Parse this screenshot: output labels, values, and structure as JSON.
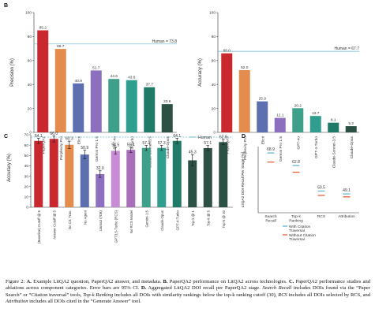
{
  "chart_data": [
    {
      "panel": "B",
      "type": "bar",
      "ylabel": "Precision (%)",
      "ylim": [
        0,
        100
      ],
      "yticks": [
        0,
        20,
        40,
        60,
        80,
        100
      ],
      "categories": [
        "PaperQA2",
        "Perplexity Pro",
        "Elicit",
        "Gemini Pro 1.5",
        "GPT-4o",
        "GPT-4-Turbo",
        "Claude-Sonnet-3.5",
        "Claude-Opus"
      ],
      "values": [
        85.2,
        69.7,
        40.9,
        51.7,
        44.6,
        43.6,
        37.7,
        23.6
      ],
      "value_labels": [
        "85.2",
        "69.7",
        "40.9",
        "51.7",
        "44.6",
        "43.6",
        "37.7",
        "23.6"
      ],
      "colors": [
        "#c8282e",
        "#e38c4d",
        "#5d6fb1",
        "#8d6fbf",
        "#3ea089",
        "#2f9e8f",
        "#1f7a68",
        "#2c5144"
      ],
      "reference_line": {
        "label": "Human = 73.8",
        "value": 73.8,
        "color": "#63b7d6"
      }
    },
    {
      "panel": "",
      "type": "bar",
      "ylabel": "Accuracy (%)",
      "ylim": [
        0,
        100
      ],
      "yticks": [
        0,
        20,
        40,
        60,
        80,
        100
      ],
      "categories": [
        "PaperQA2",
        "Perplexity Pro",
        "Elicit",
        "Gemini Pro 1.5",
        "GPT-4o",
        "GPT-4-Turbo",
        "Claude-Sonnet-3.5",
        "Claude-Opus"
      ],
      "values": [
        66.0,
        52.0,
        25.9,
        12.1,
        20.2,
        13.7,
        8.1,
        5.2
      ],
      "value_labels": [
        "66.0",
        "52.0",
        "25.9",
        "12.1",
        "20.2",
        "13.7",
        "8.1",
        "5.2"
      ],
      "colors": [
        "#c8282e",
        "#e38c4d",
        "#5d6fb1",
        "#8d6fbf",
        "#3ea089",
        "#2f9e8f",
        "#1f7a68",
        "#2c5144"
      ],
      "reference_line": {
        "label": "Human = 67.7",
        "value": 67.7,
        "color": "#63b7d6"
      }
    },
    {
      "panel": "C",
      "type": "bar",
      "ylabel": "Accuracy (%)",
      "ylim": [
        0,
        70
      ],
      "yticks": [
        0,
        10,
        20,
        30,
        40,
        50,
        60,
        70
      ],
      "categories": [
        "(Baseline) Cutoff @ 5",
        "Answer Cutoff @ 5",
        "No Cit. Trav.",
        "No Agent",
        "Llama3 (70B)",
        "GPT3.5-Turbo (RCS)",
        "No RCS Model",
        "Gemini-1.5",
        "Claude-Opus",
        "GPT-4-Turbo",
        "Top-k @ 1",
        "Top-k @ 5",
        "Top-k @ 10"
      ],
      "values": [
        64.1,
        66.0,
        60.3,
        50.9,
        32.0,
        54.5,
        55.4,
        57.3,
        57.3,
        64.1,
        45.3,
        57.1,
        62.9
      ],
      "value_labels": [
        "64.1",
        "66.0",
        "60.3",
        "50.9",
        "32.0",
        "54.5",
        "55.4",
        "57.3",
        "57.3",
        "64.1",
        "45.3",
        "57.1",
        "62.9"
      ],
      "errors": [
        2.5,
        3.0,
        3.5,
        4.2,
        3.2,
        3.2,
        2.5,
        2.5,
        2.5,
        2.5,
        5.5,
        2.5,
        2.5
      ],
      "colors": [
        "#c8282e",
        "#c8282e",
        "#e38c4d",
        "#5d6fb1",
        "#8d6fbf",
        "#c88bd6",
        "#a86fbb",
        "#3ea089",
        "#2f9e8f",
        "#1f7a68",
        "#2c5144",
        "#2c5144",
        "#2c5144"
      ],
      "legend": [
        {
          "label": "Human",
          "color": "#63b7d6"
        }
      ],
      "reference_line": {
        "value": 67.7,
        "color": "#63b7d6"
      }
    },
    {
      "panel": "D",
      "type": "scatter",
      "ylabel": "LitQA2 DOI Recall Per Stage (%)",
      "categories": [
        "Search Recall",
        "Top-k Ranking",
        "RCS",
        "Attribution"
      ],
      "series": [
        {
          "name": "With Citation Traversal",
          "color": "#63b7d6",
          "values": [
            68.9,
            62.8,
            50.5,
            49.1
          ]
        },
        {
          "name": "Without Citation Traversal",
          "color": "#e2603d",
          "values": [
            64.5,
            59.6,
            48.4,
            47.7
          ]
        }
      ],
      "value_labels": [
        "68.9",
        "62.8",
        "50.5",
        "49.1"
      ],
      "ylim": [
        40,
        72
      ]
    }
  ],
  "caption": {
    "figure_label": "Figure 2: ",
    "a_label": "A.",
    "a_text": " Example LitQA2 question, PaperQA2 answer, and metadata. ",
    "b_label": "B.",
    "b_text": " PaperQA2 performance on LitQA2 across technologies. ",
    "c_label": "C.",
    "c_text": " PaperQA2 performance studies and ablations across component categories. Error bars are 95% CI. ",
    "d_label": "D.",
    "d_text": " Aggregated LitQA2 DOI recall per PaperQA2 stage. ",
    "search_recall": "Search Recall",
    "t1": " includes DOIs found via the “Paper Search” or “Citation traversal” tools, ",
    "top_k": "Top-k Ranking",
    "t2": " includes all DOIs with similarity rankings below the top-k ranking cutoff (30), ",
    "rcs": "RCS",
    "t3": " includes all DOIs selected by RCS, and ",
    "attribution": "Attribution",
    "t4": " includes all DOIs cited in the “Generate Answer” tool."
  }
}
